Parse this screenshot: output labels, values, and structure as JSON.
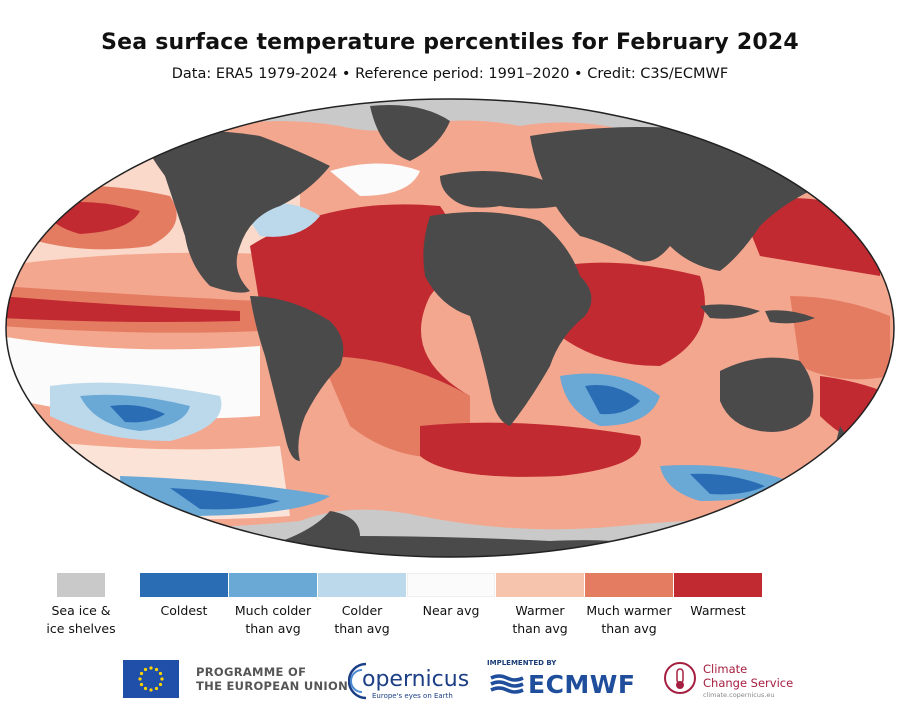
{
  "title": "Sea surface temperature percentiles for February 2024",
  "subtitle": "Data: ERA5 1979-2024 • Reference period: 1991–2020 • Credit: C3S/ECMWF",
  "colors": {
    "land": "#4a4a4a",
    "sea_ice": "#c9c9c9",
    "coldest": "#2b6db5",
    "much_colder": "#6aa8d6",
    "colder": "#bcd9ec",
    "near_avg": "#fbfbfb",
    "warmer": "#f6c3ad",
    "much_warmer": "#e47c62",
    "warmest": "#c22a31"
  },
  "legend": {
    "ice_label": "Sea ice &\nice shelves",
    "items": [
      {
        "label": "Coldest",
        "color": "#2b6db5"
      },
      {
        "label": "Much colder\nthan avg",
        "color": "#6aa8d6"
      },
      {
        "label": "Colder\nthan avg",
        "color": "#bcd9ec"
      },
      {
        "label": "Near avg",
        "color": "#fbfbfb"
      },
      {
        "label": "Warmer\nthan avg",
        "color": "#f6c3ad"
      },
      {
        "label": "Much warmer\nthan avg",
        "color": "#e47c62"
      },
      {
        "label": "Warmest",
        "color": "#c22a31"
      }
    ]
  },
  "footer": {
    "eu_text_1": "PROGRAMME OF",
    "eu_text_2": "THE EUROPEAN UNION",
    "copernicus_name": "opernicus",
    "copernicus_tagline": "Europe's eyes on Earth",
    "implemented_by": "IMPLEMENTED BY",
    "ecmwf_name": "ECMWF",
    "ccs_line1": "Climate",
    "ccs_line2": "Change Service",
    "ccs_url": "climate.copernicus.eu"
  }
}
